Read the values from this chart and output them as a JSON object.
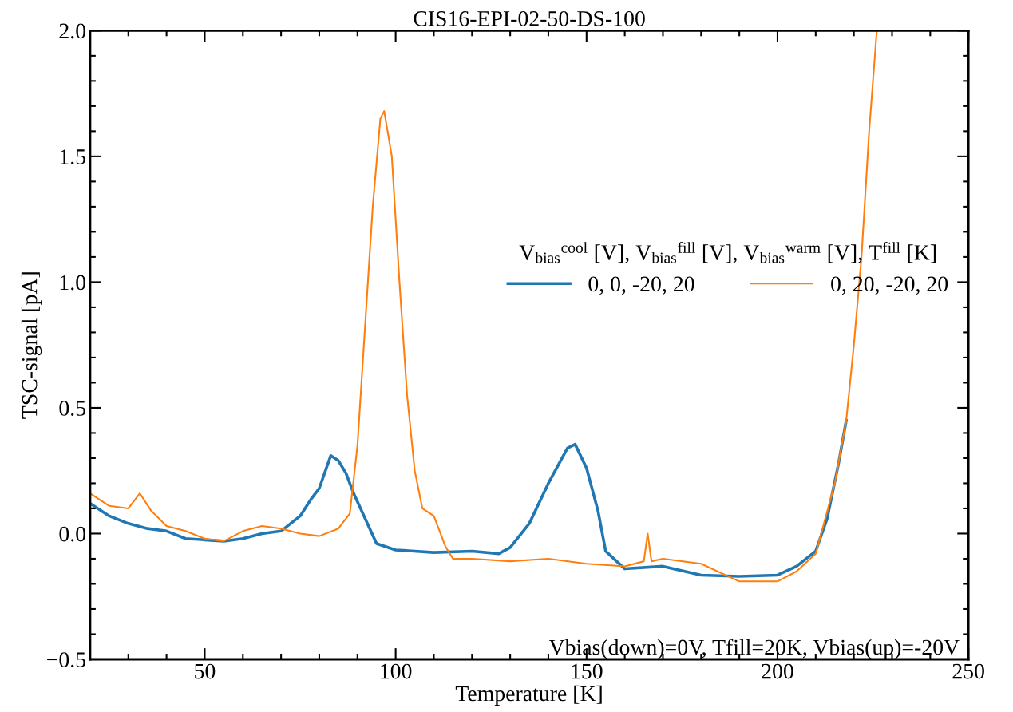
{
  "chart_data": {
    "type": "line",
    "title": "CIS16-EPI-02-50-DS-100",
    "xlabel": "Temperature [K]",
    "ylabel": "TSC-signal [pA]",
    "legend_title": "V$_{bias}$$^{cool}$ [V], V$_{bias}$$^{fill}$ [V], V$_{bias}$$^{warm}$ [V], T$^{fill}$ [K]",
    "legend": "right",
    "grid": false,
    "xlim": [
      20,
      250
    ],
    "xticks": [
      50,
      100,
      150,
      200,
      250
    ],
    "ylim": [
      -0.5,
      2.0
    ],
    "yticks": [
      {
        "value": -0.5,
        "label": "−0.5"
      },
      {
        "value": 0.0,
        "label": "0.0"
      },
      {
        "value": 0.5,
        "label": "0.5"
      },
      {
        "value": 1.0,
        "label": "1.0"
      },
      {
        "value": 1.5,
        "label": "1.5"
      },
      {
        "value": 2.0,
        "label": "2.0"
      }
    ],
    "annotations": [
      "Vbias(down)=0V, Tfill=20K, Vbias(up)=-20V"
    ],
    "series": [
      {
        "name": "0, 0, -20, 20",
        "color": "#1f77b4",
        "x": [
          20,
          25,
          30,
          35,
          40,
          45,
          50,
          55,
          60,
          65,
          70,
          75,
          78,
          80,
          83,
          85,
          87,
          89,
          92,
          95,
          100,
          110,
          120,
          127,
          130,
          135,
          140,
          145,
          147,
          150,
          153,
          155,
          160,
          170,
          180,
          190,
          200,
          205,
          210,
          213,
          216,
          218
        ],
        "values": [
          0.12,
          0.07,
          0.04,
          0.02,
          0.01,
          -0.02,
          -0.025,
          -0.03,
          -0.02,
          0.0,
          0.01,
          0.07,
          0.14,
          0.18,
          0.31,
          0.29,
          0.24,
          0.16,
          0.06,
          -0.04,
          -0.065,
          -0.075,
          -0.07,
          -0.08,
          -0.055,
          0.04,
          0.2,
          0.34,
          0.355,
          0.26,
          0.09,
          -0.07,
          -0.14,
          -0.13,
          -0.165,
          -0.17,
          -0.165,
          -0.13,
          -0.07,
          0.06,
          0.28,
          0.45
        ]
      },
      {
        "name": "0, 20, -20, 20",
        "color": "#ff7f0e",
        "x": [
          20,
          25,
          30,
          33,
          36,
          40,
          45,
          50,
          55,
          60,
          65,
          70,
          75,
          80,
          85,
          88,
          90,
          91.3,
          94,
          96,
          97,
          99,
          101,
          103,
          105,
          107,
          110,
          113,
          115,
          120,
          130,
          140,
          150,
          160,
          165,
          166,
          167,
          170,
          180,
          190,
          200,
          205,
          210,
          215,
          218,
          220,
          222,
          224,
          226
        ],
        "values": [
          0.16,
          0.11,
          0.1,
          0.16,
          0.09,
          0.03,
          0.01,
          -0.02,
          -0.03,
          0.01,
          0.03,
          0.02,
          0.0,
          -0.01,
          0.02,
          0.08,
          0.35,
          0.66,
          1.3,
          1.65,
          1.68,
          1.5,
          1.0,
          0.55,
          0.25,
          0.1,
          0.07,
          -0.05,
          -0.1,
          -0.1,
          -0.11,
          -0.1,
          -0.12,
          -0.13,
          -0.11,
          0.0,
          -0.11,
          -0.1,
          -0.12,
          -0.19,
          -0.19,
          -0.15,
          -0.08,
          0.2,
          0.45,
          0.75,
          1.1,
          1.6,
          2.0
        ]
      }
    ]
  }
}
